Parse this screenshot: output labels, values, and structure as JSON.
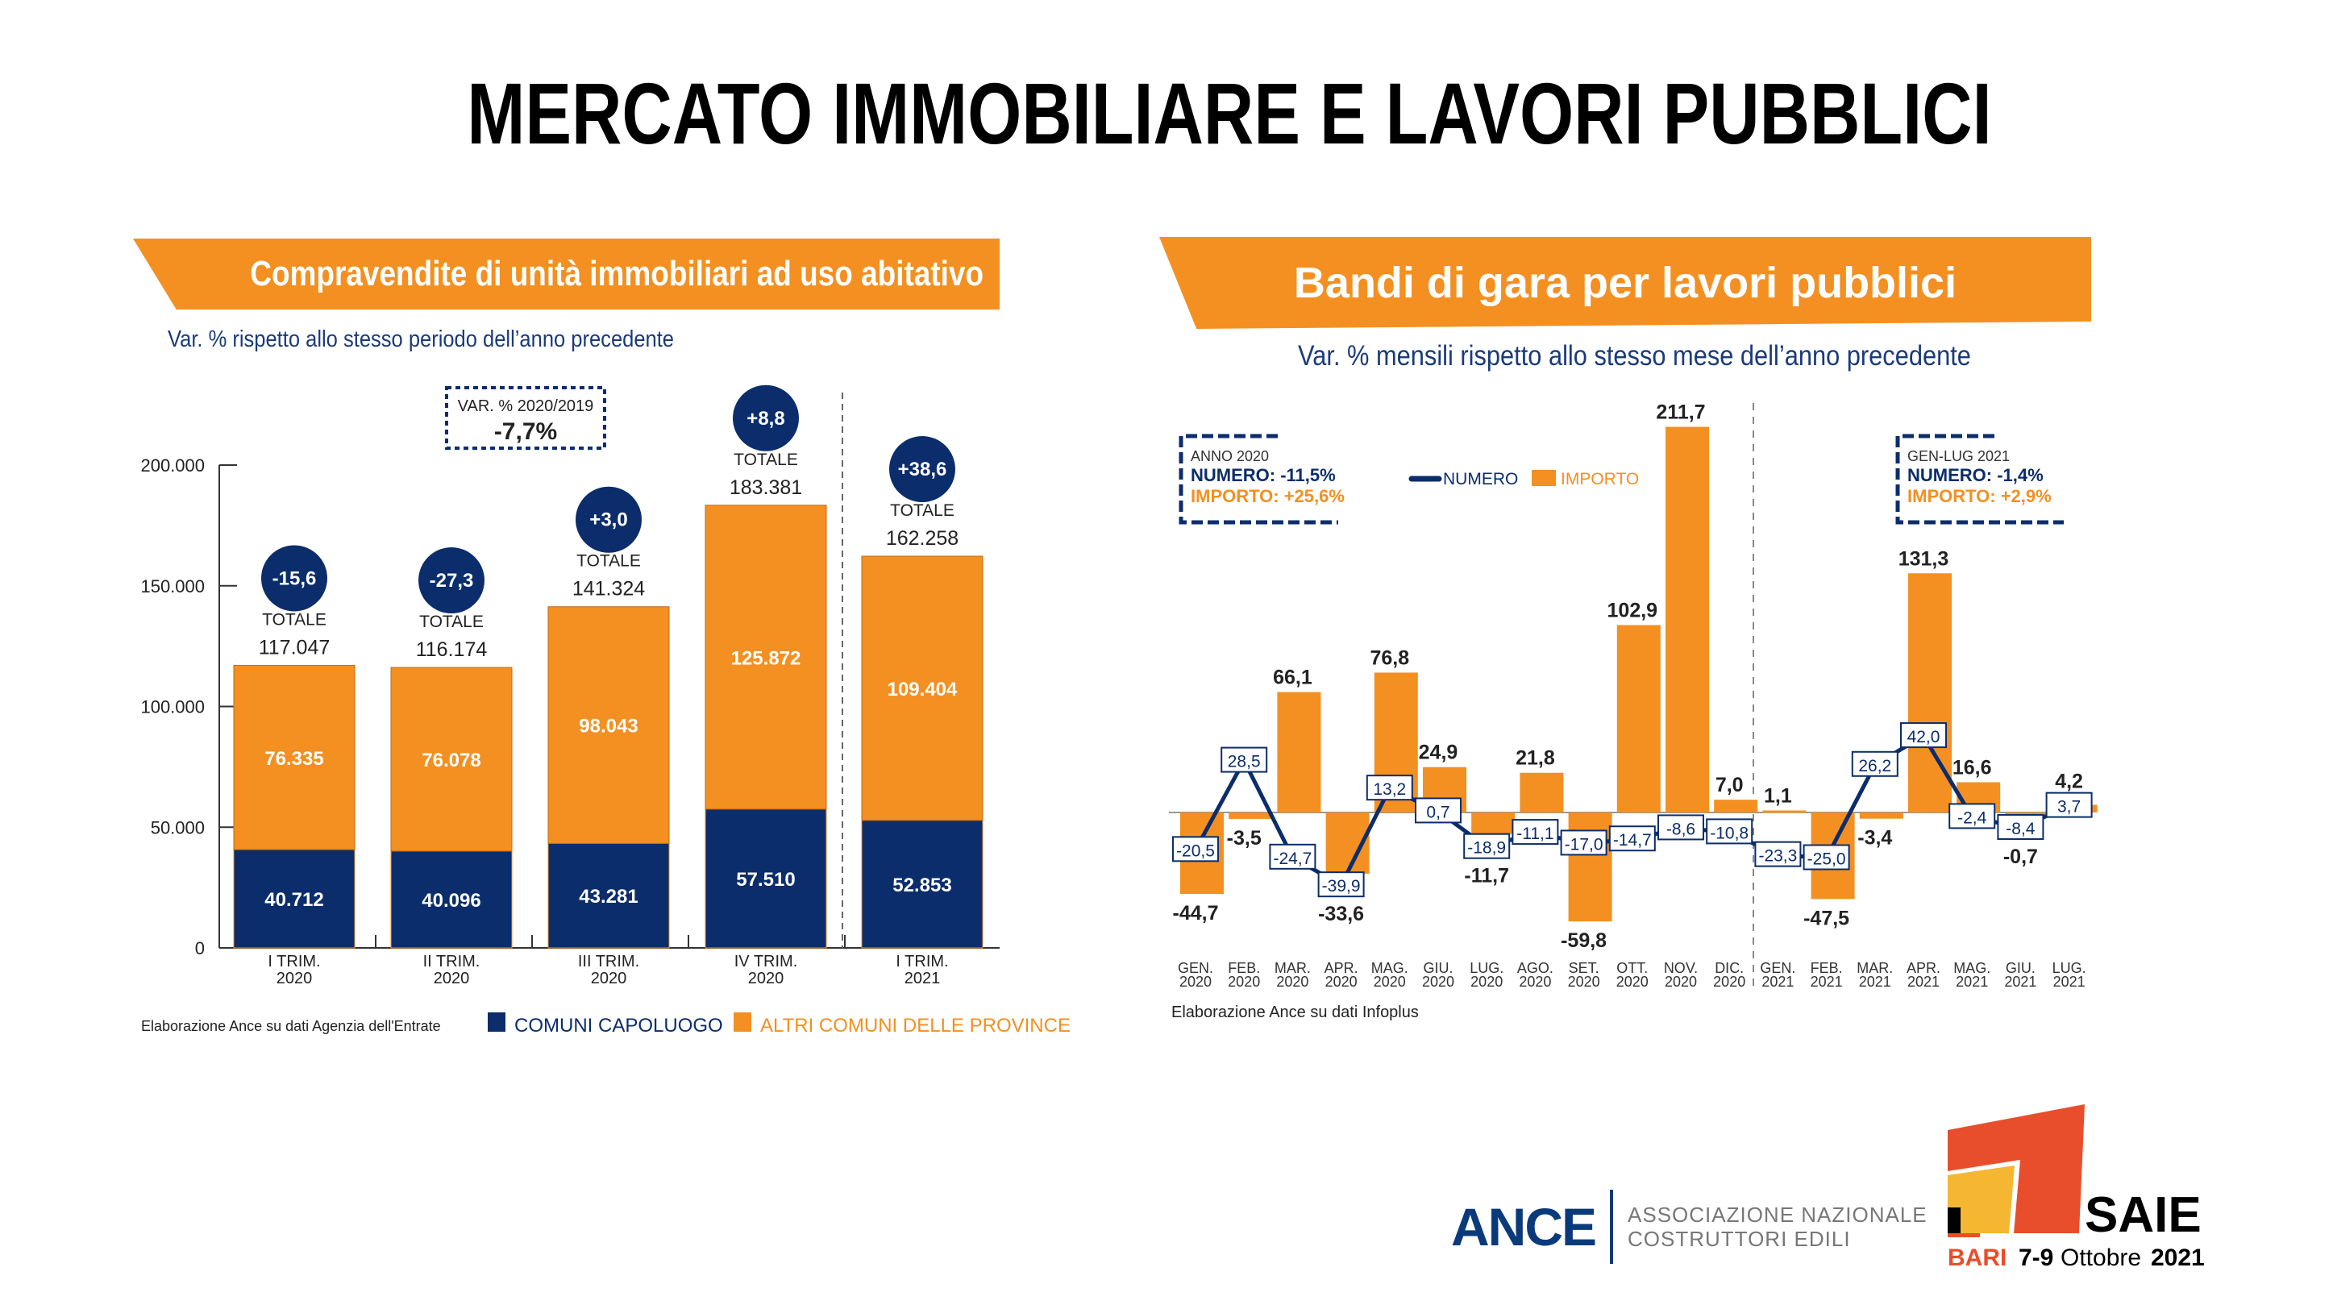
{
  "title": "MERCATO IMMOBILIARE E LAVORI PUBBLICI",
  "colors": {
    "navy": "#0b2d6b",
    "orange": "#f39021",
    "text_blue": "#1a3a7a"
  },
  "left": {
    "banner": "Compravendite di unità immobiliari ad uso abitativo",
    "subtitle": "Var. % rispetto allo stesso periodo dell’anno precedente",
    "var_box": {
      "label": "VAR. % 2020/2019",
      "value": "-7,7%"
    },
    "source": "Elaborazione Ance su dati Agenzia dell'Entrate",
    "chart_data": {
      "type": "bar",
      "stacked": true,
      "categories": [
        [
          "I TRIM.",
          "2020"
        ],
        [
          "II TRIM.",
          "2020"
        ],
        [
          "III TRIM.",
          "2020"
        ],
        [
          "IV TRIM.",
          "2020"
        ],
        [
          "I TRIM.",
          "2021"
        ]
      ],
      "series": [
        {
          "name": "COMUNI CAPOLUOGO",
          "color": "#0b2d6b",
          "values": [
            40712,
            40096,
            43281,
            57510,
            52853
          ]
        },
        {
          "name": "ALTRI COMUNI DELLE PROVINCE",
          "color": "#f39021",
          "values": [
            76335,
            76078,
            98043,
            125872,
            109404
          ]
        }
      ],
      "totals_label": "TOTALE",
      "totals": [
        117047,
        116174,
        141324,
        183381,
        162258
      ],
      "var_pct": [
        "-15,6",
        "-27,3",
        "+3,0",
        "+8,8",
        "+38,6"
      ],
      "ylim": [
        0,
        200000
      ],
      "yticks": [
        "0",
        "50.000",
        "100.000",
        "150.000",
        "200.000"
      ],
      "grid": false,
      "legend": "bottom"
    }
  },
  "right": {
    "banner": "Bandi di gara per lavori pubblici",
    "subtitle": "Var. % mensili rispetto allo stesso mese dell’anno precedente",
    "box2020": {
      "title": "ANNO 2020",
      "numero": "NUMERO: -11,5%",
      "importo": "IMPORTO: +25,6%"
    },
    "box2021": {
      "title": "GEN-LUG 2021",
      "numero": "NUMERO: -1,4%",
      "importo": "IMPORTO: +2,9%"
    },
    "source": "Elaborazione Ance su dati Infoplus",
    "chart_data": {
      "type": "bar+line",
      "categories": [
        [
          "GEN.",
          "2020"
        ],
        [
          "FEB.",
          "2020"
        ],
        [
          "MAR.",
          "2020"
        ],
        [
          "APR.",
          "2020"
        ],
        [
          "MAG.",
          "2020"
        ],
        [
          "GIU.",
          "2020"
        ],
        [
          "LUG.",
          "2020"
        ],
        [
          "AGO.",
          "2020"
        ],
        [
          "SET.",
          "2020"
        ],
        [
          "OTT.",
          "2020"
        ],
        [
          "NOV.",
          "2020"
        ],
        [
          "DIC.",
          "2020"
        ],
        [
          "GEN.",
          "2021"
        ],
        [
          "FEB.",
          "2021"
        ],
        [
          "MAR.",
          "2021"
        ],
        [
          "APR.",
          "2021"
        ],
        [
          "MAG.",
          "2021"
        ],
        [
          "GIU.",
          "2021"
        ],
        [
          "LUG.",
          "2021"
        ]
      ],
      "series": [
        {
          "name": "IMPORTO",
          "type": "bar",
          "color": "#f39021",
          "values": [
            -44.7,
            -3.5,
            66.1,
            -33.6,
            76.8,
            24.9,
            -11.7,
            21.8,
            -59.8,
            102.9,
            211.7,
            7.0,
            1.1,
            -47.5,
            -3.4,
            131.3,
            16.6,
            -0.7,
            4.2
          ]
        },
        {
          "name": "NUMERO",
          "type": "line",
          "color": "#0b2d6b",
          "values": [
            -20.5,
            28.5,
            -24.7,
            -39.9,
            13.2,
            0.7,
            -18.9,
            -11.1,
            -17.0,
            -14.7,
            -8.6,
            -10.8,
            -23.3,
            -25.0,
            26.2,
            42.0,
            -2.4,
            -8.4,
            3.7
          ]
        }
      ],
      "grid": false,
      "legend": "top"
    }
  },
  "logos": {
    "ance": {
      "word": "ANCE",
      "line1": "ASSOCIAZIONE NAZIONALE",
      "line2": "COSTRUTTORI EDILI"
    },
    "saie": {
      "word": "SAIE",
      "city": "BARI",
      "dates": "7-9",
      "month": "Ottobre",
      "year": "2021"
    }
  }
}
